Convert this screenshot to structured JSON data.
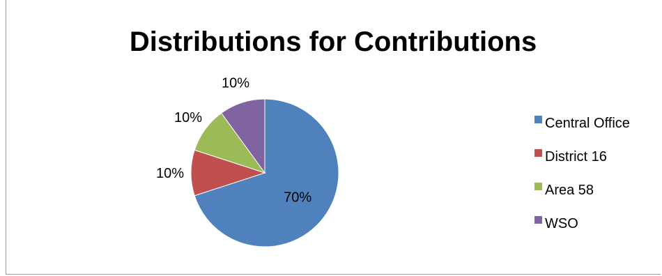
{
  "chart_data": {
    "type": "pie",
    "title": "Distributions for Contributions",
    "categories": [
      "Central Office",
      "District 16",
      "Area 58",
      "WSO"
    ],
    "values": [
      70,
      10,
      10,
      10
    ],
    "data_labels": [
      "70%",
      "10%",
      "10%",
      "10%"
    ],
    "colors": [
      "#4f81bd",
      "#c0504d",
      "#9bbb59",
      "#8064a2"
    ],
    "legend_position": "right"
  }
}
